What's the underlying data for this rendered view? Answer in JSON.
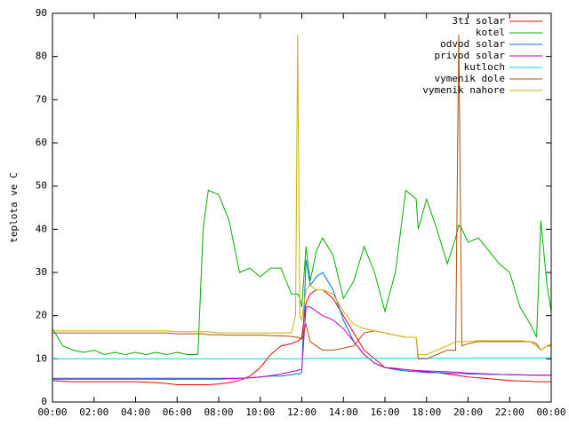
{
  "chart_data": {
    "type": "line",
    "ylabel": "teplota ve C",
    "x": [
      0,
      0.5,
      1,
      1.5,
      2,
      2.5,
      3,
      3.5,
      4,
      4.5,
      5,
      5.5,
      6,
      6.5,
      7,
      7.25,
      7.5,
      8,
      8.5,
      9,
      9.5,
      10,
      10.5,
      11,
      11.5,
      11.7,
      11.8,
      11.9,
      12,
      12.2,
      12.4,
      12.7,
      13,
      13.5,
      14,
      14.5,
      15,
      15.5,
      16,
      16.5,
      17,
      17.5,
      17.6,
      18,
      18.5,
      19,
      19.4,
      19.55,
      19.7,
      20,
      20.5,
      21,
      21.5,
      22,
      22.5,
      23,
      23.3,
      23.5,
      23.8,
      24
    ],
    "xlim": [
      0,
      24
    ],
    "xticks": [
      {
        "value": 0,
        "label": "00:00"
      },
      {
        "value": 2,
        "label": "02:00"
      },
      {
        "value": 4,
        "label": "04:00"
      },
      {
        "value": 6,
        "label": "06:00"
      },
      {
        "value": 8,
        "label": "08:00"
      },
      {
        "value": 10,
        "label": "10:00"
      },
      {
        "value": 12,
        "label": "12:00"
      },
      {
        "value": 14,
        "label": "14:00"
      },
      {
        "value": 16,
        "label": "16:00"
      },
      {
        "value": 18,
        "label": "18:00"
      },
      {
        "value": 20,
        "label": "20:00"
      },
      {
        "value": 22,
        "label": "22:00"
      },
      {
        "value": 24,
        "label": "00:00"
      }
    ],
    "ylim": [
      0,
      90
    ],
    "yticks": [
      0,
      10,
      20,
      30,
      40,
      50,
      60,
      70,
      80,
      90
    ],
    "grid": false,
    "legend": "top-right",
    "series": [
      {
        "name": "3ti solar",
        "color": "#ff0000",
        "values": [
          5,
          4.8,
          4.7,
          4.7,
          4.7,
          4.7,
          4.7,
          4.7,
          4.7,
          4.6,
          4.5,
          4.3,
          4,
          4,
          4,
          4,
          4,
          4.2,
          4.5,
          5,
          6,
          8,
          11,
          13,
          13.5,
          14,
          14,
          14.5,
          15,
          23,
          25,
          26,
          26,
          24,
          20,
          16,
          12,
          10,
          8,
          7.8,
          7.5,
          7.3,
          7.2,
          7,
          6.8,
          6.5,
          6.2,
          6.1,
          6,
          5.8,
          5.6,
          5.4,
          5.2,
          5,
          4.9,
          4.8,
          4.7,
          4.7,
          4.7,
          4.7
        ]
      },
      {
        "name": "kotel",
        "color": "#00b000",
        "values": [
          17,
          13,
          12,
          11.5,
          12,
          11,
          11.5,
          11,
          11.5,
          11,
          11.5,
          11,
          11.5,
          11,
          11,
          40,
          49,
          48,
          42,
          30,
          31,
          29,
          31,
          31,
          25,
          25,
          25,
          24,
          22,
          36,
          28,
          35,
          38,
          34,
          24,
          28,
          36,
          30,
          21,
          30,
          49,
          47,
          40,
          47,
          40,
          32,
          38,
          41,
          40,
          37,
          38,
          35,
          32,
          30,
          22,
          18,
          15,
          42,
          27,
          21
        ]
      },
      {
        "name": "odvod solar",
        "color": "#0070e0",
        "values": [
          5.5,
          5.5,
          5.5,
          5.5,
          5.5,
          5.5,
          5.5,
          5.5,
          5.5,
          5.5,
          5.5,
          5.5,
          5.5,
          5.5,
          5.5,
          5.5,
          5.5,
          5.5,
          5.5,
          5.5,
          5.6,
          5.8,
          6,
          6,
          6.3,
          6.5,
          6.5,
          6.5,
          7,
          33,
          27,
          29,
          30,
          26,
          19,
          14,
          11,
          9,
          8,
          7.5,
          7.2,
          7,
          7,
          6.8,
          6.8,
          6.7,
          6.6,
          6.6,
          6.6,
          6.5,
          6.5,
          6.4,
          6.4,
          6.3,
          6.3,
          6.2,
          6.2,
          6.2,
          6.2,
          6.2
        ]
      },
      {
        "name": "privod solar",
        "color": "#c000c0",
        "values": [
          5.3,
          5.3,
          5.3,
          5.3,
          5.3,
          5.3,
          5.3,
          5.3,
          5.3,
          5.3,
          5.3,
          5.3,
          5.3,
          5.3,
          5.3,
          5.3,
          5.3,
          5.3,
          5.4,
          5.5,
          5.6,
          5.8,
          6.1,
          6.5,
          7,
          7.2,
          7.3,
          7.5,
          7.5,
          22,
          22,
          21,
          20,
          19,
          17,
          14,
          11,
          9,
          8,
          7.7,
          7.5,
          7.3,
          7.3,
          7.2,
          7.1,
          7,
          6.9,
          6.9,
          6.8,
          6.7,
          6.6,
          6.5,
          6.4,
          6.3,
          6.3,
          6.2,
          6.2,
          6.2,
          6.2,
          6.2
        ]
      },
      {
        "name": "kutloch",
        "color": "#00d8d8",
        "values": [
          10,
          10,
          10,
          10,
          10,
          10,
          10,
          10,
          10,
          10,
          10,
          10,
          10,
          10,
          10,
          10,
          10,
          10,
          10,
          10,
          10,
          10,
          10,
          10,
          10,
          10,
          10,
          10,
          10,
          10,
          10.1,
          10.1,
          10.1,
          10.1,
          10.1,
          10.1,
          10.1,
          10.1,
          10.1,
          10.1,
          10.1,
          10.1,
          10.1,
          10.1,
          10.1,
          10.1,
          10.1,
          10.1,
          10.1,
          10.1,
          10.2,
          10.2,
          10.2,
          10.2,
          10.2,
          10.2,
          10.2,
          10.2,
          10.2,
          10.2
        ]
      },
      {
        "name": "vymenik dole",
        "color": "#b05000",
        "values": [
          16,
          16,
          16,
          16,
          16,
          16,
          16,
          16,
          16,
          16,
          16,
          16,
          15.8,
          15.8,
          15.8,
          15.8,
          15.6,
          15.6,
          15.5,
          15.5,
          15.5,
          15.5,
          15.4,
          15.3,
          15.2,
          15,
          15,
          14.8,
          14.5,
          18,
          14,
          13,
          12,
          12,
          12.5,
          13,
          16,
          16.5,
          16,
          15.5,
          15,
          15,
          10,
          10,
          11,
          12,
          12,
          85,
          13,
          13.5,
          14,
          14,
          14,
          14,
          14,
          14,
          13.5,
          12,
          13,
          13
        ]
      },
      {
        "name": "vymenik nahore",
        "color": "#c8b400",
        "values": [
          16.5,
          16.5,
          16.5,
          16.5,
          16.5,
          16.5,
          16.5,
          16.5,
          16.5,
          16.5,
          16.5,
          16.5,
          16.3,
          16.3,
          16.3,
          16.3,
          16.3,
          16,
          16,
          16,
          16,
          16,
          16,
          16,
          16,
          20,
          85,
          20,
          19,
          26,
          27,
          26,
          26,
          25,
          21,
          18,
          17,
          16.5,
          16,
          15.5,
          15,
          15,
          11,
          11,
          12,
          13,
          14,
          14,
          14,
          14,
          14.2,
          14.2,
          14.2,
          14.2,
          14.2,
          14,
          13,
          12,
          13,
          13.5
        ]
      }
    ]
  }
}
